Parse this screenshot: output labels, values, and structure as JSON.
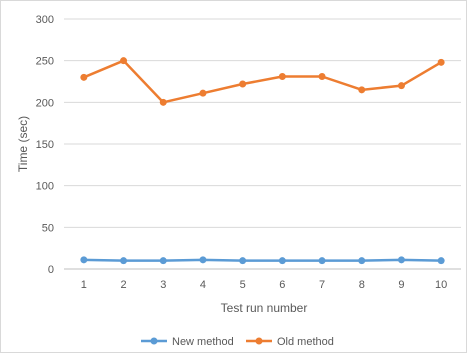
{
  "chart_data": {
    "type": "line",
    "title": "",
    "xlabel": "Test run number",
    "ylabel": "Time (sec)",
    "ylim": [
      0,
      300
    ],
    "yticks": [
      0,
      50,
      100,
      150,
      200,
      250,
      300
    ],
    "categories": [
      "1",
      "2",
      "3",
      "4",
      "5",
      "6",
      "7",
      "8",
      "9",
      "10"
    ],
    "grid": "horizontal",
    "legend_position": "bottom",
    "series": [
      {
        "name": "New method",
        "color": "#5b9bd5",
        "values": [
          11,
          10,
          10,
          11,
          10,
          10,
          10,
          10,
          11,
          10
        ]
      },
      {
        "name": "Old method",
        "color": "#ed7d31",
        "values": [
          230,
          250,
          200,
          211,
          222,
          231,
          231,
          215,
          220,
          248
        ]
      }
    ]
  }
}
